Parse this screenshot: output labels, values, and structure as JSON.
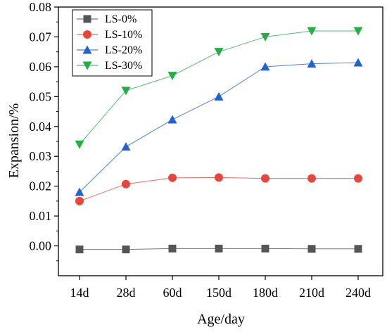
{
  "chart_data": {
    "type": "line",
    "xlabel": "Age/day",
    "ylabel": "Expansion/%",
    "categories": [
      "14d",
      "28d",
      "60d",
      "150d",
      "180d",
      "210d",
      "240d"
    ],
    "ylim": [
      -0.01,
      0.08
    ],
    "yticks": [
      0.0,
      0.01,
      0.02,
      0.03,
      0.04,
      0.05,
      0.06,
      0.07,
      0.08
    ],
    "ytick_labels": [
      "0.00",
      "0.01",
      "0.02",
      "0.03",
      "0.04",
      "0.05",
      "0.06",
      "0.07",
      "0.08"
    ],
    "grid": false,
    "legend": "top-left",
    "series": [
      {
        "name": "LS-0%",
        "color": "#555555",
        "marker": "square",
        "values": [
          -0.0012,
          -0.0012,
          -0.0009,
          -0.0009,
          -0.0009,
          -0.001,
          -0.001
        ]
      },
      {
        "name": "LS-10%",
        "color": "#e8453c",
        "marker": "circle",
        "values": [
          0.015,
          0.0207,
          0.0228,
          0.0229,
          0.0226,
          0.0226,
          0.0226
        ]
      },
      {
        "name": "LS-20%",
        "color": "#1f63d6",
        "marker": "triangle-up",
        "values": [
          0.018,
          0.0332,
          0.0423,
          0.05,
          0.06,
          0.061,
          0.0614
        ]
      },
      {
        "name": "LS-30%",
        "color": "#22b046",
        "marker": "triangle-down",
        "values": [
          0.034,
          0.052,
          0.057,
          0.065,
          0.07,
          0.072,
          0.072
        ]
      }
    ]
  }
}
